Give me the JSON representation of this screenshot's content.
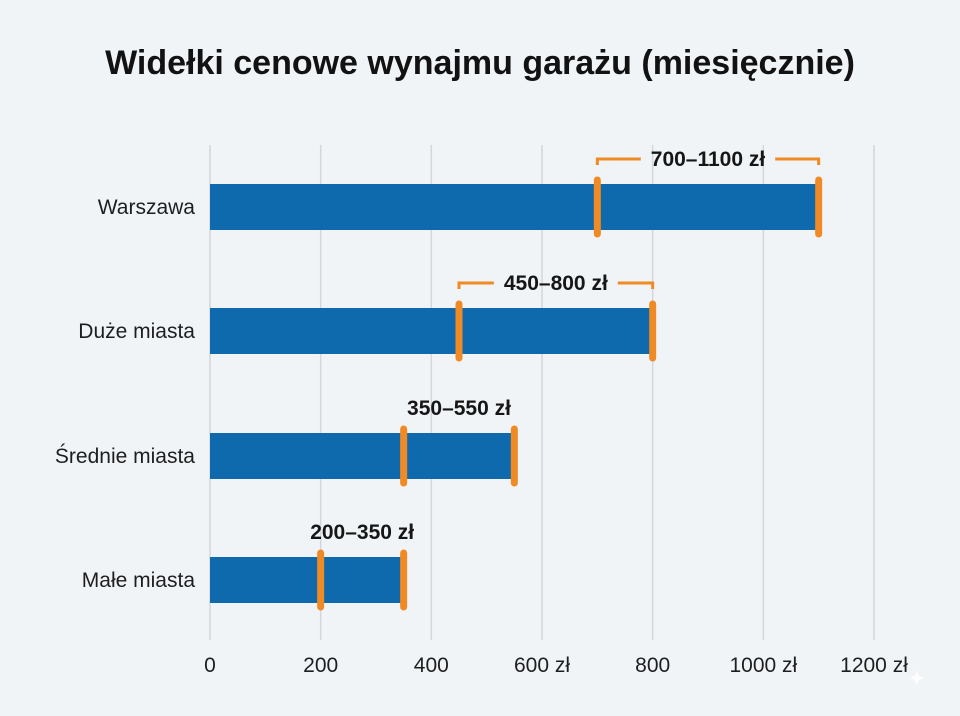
{
  "chart_data": {
    "type": "bar",
    "title": "Widełki cenowe wynajmu garażu (miesięcznie)",
    "xlabel": "",
    "ylabel": "",
    "orientation": "horizontal",
    "categories": [
      "Warszawa",
      "Duże miasta",
      "Średnie miasta",
      "Małe miasta"
    ],
    "ranges": [
      {
        "category": "Warszawa",
        "low": 700,
        "high": 1100,
        "label": "700–1100 zł"
      },
      {
        "category": "Duże miasta",
        "low": 450,
        "high": 800,
        "label": "450–800 zł"
      },
      {
        "category": "Średnie miasta",
        "low": 350,
        "high": 550,
        "label": "350–550 zł"
      },
      {
        "category": "Małe miasta",
        "low": 200,
        "high": 350,
        "label": "200–350 zł"
      }
    ],
    "xlim": [
      0,
      1200
    ],
    "xticks": [
      0,
      200,
      400,
      600,
      800,
      1000,
      1200
    ],
    "xtick_labels": [
      "0",
      "200",
      "400",
      "600 zł",
      "800",
      "1000 zł",
      "1200 zł"
    ],
    "grid": true,
    "legend": "none",
    "colors": {
      "bar": "#0f6aad",
      "marker": "#f08a24",
      "grid": "#d3d7dc",
      "background": "#f1f4f7"
    }
  }
}
